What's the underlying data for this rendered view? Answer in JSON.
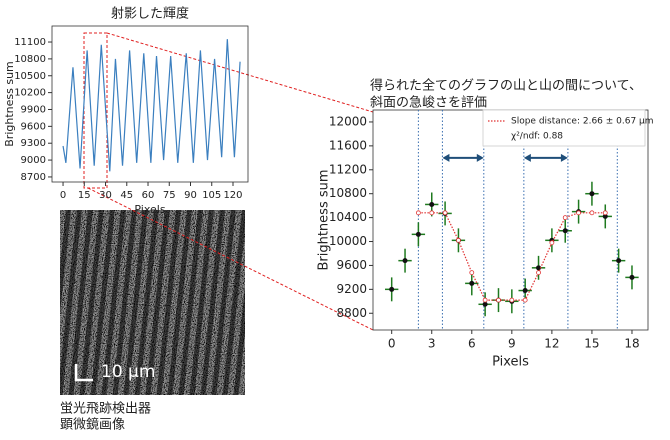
{
  "chart_data": [
    {
      "type": "line",
      "title": "射影した輝度",
      "x_label": "Pixels",
      "y_label": "Brightness sum",
      "x": [
        0,
        2,
        7,
        12,
        17,
        22,
        27,
        33,
        37,
        42,
        47,
        52,
        57,
        62,
        66,
        71,
        76,
        81,
        87,
        92,
        97,
        102,
        107,
        112,
        116,
        121,
        125
      ],
      "values": [
        9250,
        8950,
        10650,
        8850,
        10950,
        8900,
        11050,
        8800,
        10800,
        8900,
        10950,
        8950,
        10900,
        8950,
        10850,
        9000,
        10850,
        8950,
        10900,
        8950,
        10950,
        9000,
        10800,
        9050,
        11150,
        9050,
        10750
      ],
      "color": "#3b7fbf",
      "xlim": [
        -7.8,
        130.6
      ],
      "xticks": [
        0,
        15,
        30,
        45,
        60,
        75,
        90,
        105,
        120
      ],
      "ylim": [
        8610,
        11385
      ],
      "yticks": [
        8700,
        9000,
        9300,
        9600,
        9900,
        10200,
        10500,
        10800,
        11100
      ]
    },
    {
      "type": "scatter",
      "title": [
        "得られた全てのグラフの山と山の間について、",
        "斜面の急峻さを評価"
      ],
      "x_label": "Pixels",
      "y_label": "Brightness sum",
      "x": [
        0,
        1,
        2,
        3,
        4,
        5,
        6,
        7,
        8,
        9,
        10,
        11,
        12,
        13,
        14,
        15,
        16,
        17,
        18
      ],
      "values": [
        9200,
        9680,
        10120,
        10620,
        10470,
        10020,
        9300,
        8950,
        9020,
        9000,
        9180,
        9560,
        10020,
        10180,
        10500,
        10800,
        10420,
        9680,
        9400
      ],
      "y_err": [
        200,
        200,
        200,
        200,
        200,
        200,
        200,
        200,
        200,
        200,
        200,
        200,
        200,
        200,
        200,
        200,
        200,
        200,
        200
      ],
      "x_err": [
        0.5,
        0.5,
        0.5,
        0.5,
        0.5,
        0.5,
        0.5,
        0.5,
        0.5,
        0.5,
        0.5,
        0.5,
        0.5,
        0.5,
        0.5,
        0.5,
        0.5,
        0.5,
        0.5
      ],
      "color": "#1f7a1f",
      "series": [
        {
          "name": "Slope distance: 2.66 ± 0.67 μm",
          "color": "#e03030",
          "x": [
            2,
            3,
            4,
            5,
            6,
            7,
            8,
            9,
            10,
            11,
            12,
            13,
            14,
            15,
            16
          ],
          "values": [
            10480,
            10480,
            10480,
            10020,
            9480,
            9020,
            9020,
            9020,
            9020,
            9480,
            9980,
            10400,
            10480,
            10480,
            10480
          ]
        }
      ],
      "legend_note": "χ²/ndf: 0.88",
      "vlines": [
        2,
        3.8,
        6.9,
        9.9,
        13.2,
        16.9
      ],
      "vline_color": "#3a6fb0",
      "arrows": [
        {
          "x": [
            3.8,
            6.9
          ],
          "y": 11400
        },
        {
          "x": [
            9.9,
            13.2
          ],
          "y": 11400
        }
      ],
      "arrow_color": "#1f4e79",
      "xlim": [
        -1.4,
        19.2
      ],
      "xticks": [
        0,
        3,
        6,
        9,
        12,
        15,
        18
      ],
      "ylim": [
        8520,
        12200
      ],
      "yticks": [
        8800,
        9200,
        9600,
        10000,
        10400,
        10800,
        11200,
        11600,
        12000
      ]
    }
  ],
  "image": {
    "scale_label": "10 μm",
    "caption": [
      "蛍光飛跡検出器",
      "顕微鏡画像"
    ]
  }
}
